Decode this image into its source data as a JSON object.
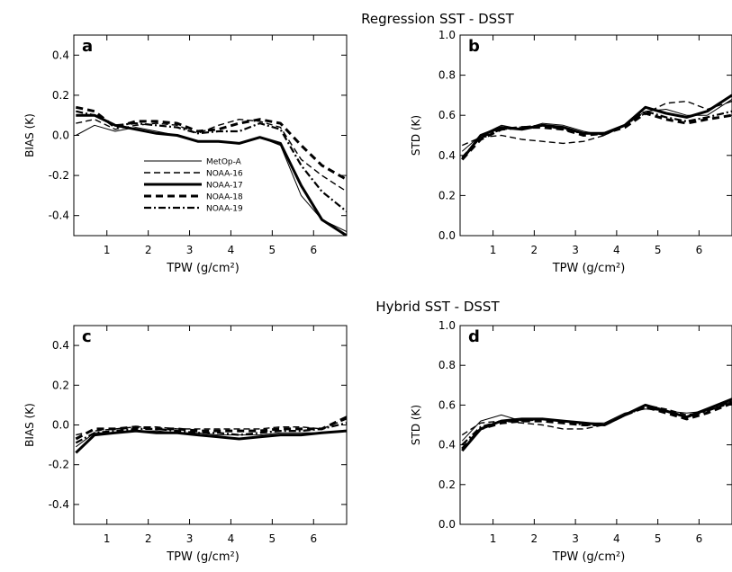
{
  "figure": {
    "row_titles": [
      "Regression SST - DSST",
      "Hybrid SST - DSST"
    ]
  },
  "legend": {
    "entries": [
      "MetOp-A",
      "NOAA-16",
      "NOAA-17",
      "NOAA-18",
      "NOAA-19"
    ]
  },
  "chart_data": [
    {
      "type": "line",
      "panel_label": "a",
      "xlabel": "TPW (g/cm²)",
      "ylabel": "BIAS (K)",
      "xlim": [
        0.2,
        6.8
      ],
      "ylim": [
        -0.5,
        0.5
      ],
      "xticks": [
        1,
        2,
        3,
        4,
        5,
        6
      ],
      "yticks": [
        -0.4,
        -0.2,
        0.0,
        0.2,
        0.4
      ],
      "ytick_labels": [
        "-0.4",
        "-0.2",
        "0.0",
        "0.2",
        "0.4"
      ],
      "legend_position": "center-left",
      "series": [
        {
          "name": "MetOp-A",
          "style": "thin",
          "x": [
            0.25,
            0.7,
            1.2,
            1.7,
            2.2,
            2.7,
            3.2,
            3.7,
            4.2,
            4.7,
            5.2,
            5.7,
            6.2,
            6.8
          ],
          "y": [
            0.0,
            0.05,
            0.02,
            0.04,
            0.02,
            0.0,
            -0.03,
            -0.03,
            -0.04,
            -0.01,
            -0.05,
            -0.3,
            -0.42,
            -0.48
          ]
        },
        {
          "name": "NOAA-16",
          "style": "dashed",
          "x": [
            0.25,
            0.7,
            1.2,
            1.7,
            2.2,
            2.7,
            3.2,
            3.7,
            4.2,
            4.7,
            5.2,
            5.7,
            6.2,
            6.8
          ],
          "y": [
            0.06,
            0.08,
            0.03,
            0.05,
            0.06,
            0.05,
            0.01,
            0.05,
            0.08,
            0.07,
            0.04,
            -0.12,
            -0.2,
            -0.28
          ]
        },
        {
          "name": "NOAA-17",
          "style": "thick",
          "x": [
            0.25,
            0.7,
            1.2,
            1.7,
            2.2,
            2.7,
            3.2,
            3.7,
            4.2,
            4.7,
            5.2,
            5.7,
            6.2,
            6.8
          ],
          "y": [
            0.1,
            0.1,
            0.05,
            0.03,
            0.01,
            0.0,
            -0.03,
            -0.03,
            -0.04,
            -0.01,
            -0.04,
            -0.25,
            -0.42,
            -0.5
          ]
        },
        {
          "name": "NOAA-18",
          "style": "thick-dashed",
          "x": [
            0.25,
            0.7,
            1.2,
            1.7,
            2.2,
            2.7,
            3.2,
            3.7,
            4.2,
            4.7,
            5.2,
            5.7,
            6.2,
            6.8
          ],
          "y": [
            0.14,
            0.12,
            0.04,
            0.07,
            0.07,
            0.06,
            0.02,
            0.03,
            0.06,
            0.08,
            0.06,
            -0.05,
            -0.15,
            -0.22
          ]
        },
        {
          "name": "NOAA-19",
          "style": "dash-dot",
          "x": [
            0.25,
            0.7,
            1.2,
            1.7,
            2.2,
            2.7,
            3.2,
            3.7,
            4.2,
            4.7,
            5.2,
            5.7,
            6.2,
            6.8
          ],
          "y": [
            0.12,
            0.1,
            0.05,
            0.06,
            0.05,
            0.04,
            0.01,
            0.02,
            0.02,
            0.06,
            0.03,
            -0.15,
            -0.28,
            -0.38
          ]
        }
      ]
    },
    {
      "type": "line",
      "panel_label": "b",
      "xlabel": "TPW (g/cm²)",
      "ylabel": "STD (K)",
      "xlim": [
        0.2,
        6.8
      ],
      "ylim": [
        0.0,
        1.0
      ],
      "xticks": [
        1,
        2,
        3,
        4,
        5,
        6
      ],
      "yticks": [
        0.0,
        0.2,
        0.4,
        0.6,
        0.8,
        1.0
      ],
      "ytick_labels": [
        "0.0",
        "0.2",
        "0.4",
        "0.6",
        "0.8",
        "1.0"
      ],
      "series": [
        {
          "name": "MetOp-A",
          "style": "thin",
          "x": [
            0.25,
            0.7,
            1.2,
            1.7,
            2.2,
            2.7,
            3.2,
            3.7,
            4.2,
            4.7,
            5.2,
            5.7,
            6.2,
            6.8
          ],
          "y": [
            0.42,
            0.5,
            0.55,
            0.53,
            0.56,
            0.55,
            0.52,
            0.5,
            0.55,
            0.62,
            0.63,
            0.6,
            0.6,
            0.68
          ]
        },
        {
          "name": "NOAA-16",
          "style": "dashed",
          "x": [
            0.25,
            0.7,
            1.2,
            1.7,
            2.2,
            2.7,
            3.2,
            3.7,
            4.2,
            4.7,
            5.2,
            5.7,
            6.2,
            6.8
          ],
          "y": [
            0.45,
            0.49,
            0.5,
            0.48,
            0.47,
            0.46,
            0.47,
            0.5,
            0.55,
            0.61,
            0.66,
            0.67,
            0.63,
            0.67
          ]
        },
        {
          "name": "NOAA-17",
          "style": "thick",
          "x": [
            0.25,
            0.7,
            1.2,
            1.7,
            2.2,
            2.7,
            3.2,
            3.7,
            4.2,
            4.7,
            5.2,
            5.7,
            6.2,
            6.8
          ],
          "y": [
            0.38,
            0.5,
            0.54,
            0.53,
            0.55,
            0.54,
            0.51,
            0.51,
            0.55,
            0.64,
            0.61,
            0.59,
            0.62,
            0.7
          ]
        },
        {
          "name": "NOAA-18",
          "style": "thick-dashed",
          "x": [
            0.25,
            0.7,
            1.2,
            1.7,
            2.2,
            2.7,
            3.2,
            3.7,
            4.2,
            4.7,
            5.2,
            5.7,
            6.2,
            6.8
          ],
          "y": [
            0.38,
            0.48,
            0.53,
            0.54,
            0.54,
            0.53,
            0.5,
            0.51,
            0.54,
            0.61,
            0.58,
            0.56,
            0.58,
            0.6
          ]
        },
        {
          "name": "NOAA-19",
          "style": "dash-dot",
          "x": [
            0.25,
            0.7,
            1.2,
            1.7,
            2.2,
            2.7,
            3.2,
            3.7,
            4.2,
            4.7,
            5.2,
            5.7,
            6.2,
            6.8
          ],
          "y": [
            0.39,
            0.49,
            0.53,
            0.54,
            0.55,
            0.53,
            0.51,
            0.51,
            0.55,
            0.62,
            0.59,
            0.57,
            0.59,
            0.62
          ]
        }
      ]
    },
    {
      "type": "line",
      "panel_label": "c",
      "xlabel": "TPW (g/cm²)",
      "ylabel": "BIAS (K)",
      "xlim": [
        0.2,
        6.8
      ],
      "ylim": [
        -0.5,
        0.5
      ],
      "xticks": [
        1,
        2,
        3,
        4,
        5,
        6
      ],
      "yticks": [
        -0.4,
        -0.2,
        0.0,
        0.2,
        0.4
      ],
      "ytick_labels": [
        "-0.4",
        "-0.2",
        "0.0",
        "0.2",
        "0.4"
      ],
      "series": [
        {
          "name": "MetOp-A",
          "style": "thin",
          "x": [
            0.25,
            0.7,
            1.2,
            1.7,
            2.2,
            2.7,
            3.2,
            3.7,
            4.2,
            4.7,
            5.2,
            5.7,
            6.2,
            6.8
          ],
          "y": [
            -0.11,
            -0.04,
            -0.04,
            -0.03,
            -0.03,
            -0.04,
            -0.04,
            -0.05,
            -0.05,
            -0.05,
            -0.04,
            -0.04,
            -0.04,
            -0.03
          ]
        },
        {
          "name": "NOAA-16",
          "style": "dashed",
          "x": [
            0.25,
            0.7,
            1.2,
            1.7,
            2.2,
            2.7,
            3.2,
            3.7,
            4.2,
            4.7,
            5.2,
            5.7,
            6.2,
            6.8
          ],
          "y": [
            -0.05,
            -0.03,
            -0.02,
            -0.01,
            -0.01,
            -0.02,
            -0.02,
            -0.02,
            -0.02,
            -0.02,
            -0.01,
            -0.01,
            -0.02,
            0.03
          ]
        },
        {
          "name": "NOAA-17",
          "style": "thick",
          "x": [
            0.25,
            0.7,
            1.2,
            1.7,
            2.2,
            2.7,
            3.2,
            3.7,
            4.2,
            4.7,
            5.2,
            5.7,
            6.2,
            6.8
          ],
          "y": [
            -0.14,
            -0.05,
            -0.04,
            -0.03,
            -0.04,
            -0.04,
            -0.05,
            -0.06,
            -0.07,
            -0.06,
            -0.05,
            -0.05,
            -0.04,
            -0.03
          ]
        },
        {
          "name": "NOAA-18",
          "style": "thick-dashed",
          "x": [
            0.25,
            0.7,
            1.2,
            1.7,
            2.2,
            2.7,
            3.2,
            3.7,
            4.2,
            4.7,
            5.2,
            5.7,
            6.2,
            6.8
          ],
          "y": [
            -0.07,
            -0.02,
            -0.02,
            -0.01,
            -0.02,
            -0.02,
            -0.03,
            -0.03,
            -0.03,
            -0.03,
            -0.02,
            -0.02,
            -0.02,
            0.04
          ]
        },
        {
          "name": "NOAA-19",
          "style": "dash-dot",
          "x": [
            0.25,
            0.7,
            1.2,
            1.7,
            2.2,
            2.7,
            3.2,
            3.7,
            4.2,
            4.7,
            5.2,
            5.7,
            6.2,
            6.8
          ],
          "y": [
            -0.09,
            -0.04,
            -0.03,
            -0.02,
            -0.02,
            -0.03,
            -0.04,
            -0.04,
            -0.05,
            -0.04,
            -0.03,
            -0.03,
            -0.02,
            0.01
          ]
        }
      ]
    },
    {
      "type": "line",
      "panel_label": "d",
      "xlabel": "TPW (g/cm²)",
      "ylabel": "STD (K)",
      "xlim": [
        0.2,
        6.8
      ],
      "ylim": [
        0.0,
        1.0
      ],
      "xticks": [
        1,
        2,
        3,
        4,
        5,
        6
      ],
      "yticks": [
        0.0,
        0.2,
        0.4,
        0.6,
        0.8,
        1.0
      ],
      "ytick_labels": [
        "0.0",
        "0.2",
        "0.4",
        "0.6",
        "0.8",
        "1.0"
      ],
      "series": [
        {
          "name": "MetOp-A",
          "style": "thin",
          "x": [
            0.25,
            0.7,
            1.2,
            1.7,
            2.2,
            2.7,
            3.2,
            3.7,
            4.2,
            4.7,
            5.2,
            5.7,
            6.2,
            6.8
          ],
          "y": [
            0.42,
            0.52,
            0.55,
            0.52,
            0.53,
            0.52,
            0.51,
            0.51,
            0.56,
            0.58,
            0.57,
            0.56,
            0.57,
            0.62
          ]
        },
        {
          "name": "NOAA-16",
          "style": "dashed",
          "x": [
            0.25,
            0.7,
            1.2,
            1.7,
            2.2,
            2.7,
            3.2,
            3.7,
            4.2,
            4.7,
            5.2,
            5.7,
            6.2,
            6.8
          ],
          "y": [
            0.45,
            0.51,
            0.52,
            0.51,
            0.5,
            0.48,
            0.48,
            0.5,
            0.55,
            0.6,
            0.58,
            0.55,
            0.57,
            0.61
          ]
        },
        {
          "name": "NOAA-17",
          "style": "thick",
          "x": [
            0.25,
            0.7,
            1.2,
            1.7,
            2.2,
            2.7,
            3.2,
            3.7,
            4.2,
            4.7,
            5.2,
            5.7,
            6.2,
            6.8
          ],
          "y": [
            0.37,
            0.48,
            0.52,
            0.53,
            0.53,
            0.52,
            0.51,
            0.5,
            0.55,
            0.6,
            0.57,
            0.54,
            0.58,
            0.63
          ]
        },
        {
          "name": "NOAA-18",
          "style": "thick-dashed",
          "x": [
            0.25,
            0.7,
            1.2,
            1.7,
            2.2,
            2.7,
            3.2,
            3.7,
            4.2,
            4.7,
            5.2,
            5.7,
            6.2,
            6.8
          ],
          "y": [
            0.38,
            0.48,
            0.51,
            0.52,
            0.52,
            0.51,
            0.5,
            0.5,
            0.55,
            0.59,
            0.56,
            0.53,
            0.56,
            0.61
          ]
        },
        {
          "name": "NOAA-19",
          "style": "dash-dot",
          "x": [
            0.25,
            0.7,
            1.2,
            1.7,
            2.2,
            2.7,
            3.2,
            3.7,
            4.2,
            4.7,
            5.2,
            5.7,
            6.2,
            6.8
          ],
          "y": [
            0.4,
            0.49,
            0.52,
            0.52,
            0.53,
            0.52,
            0.5,
            0.5,
            0.55,
            0.59,
            0.57,
            0.54,
            0.57,
            0.62
          ]
        }
      ]
    }
  ]
}
